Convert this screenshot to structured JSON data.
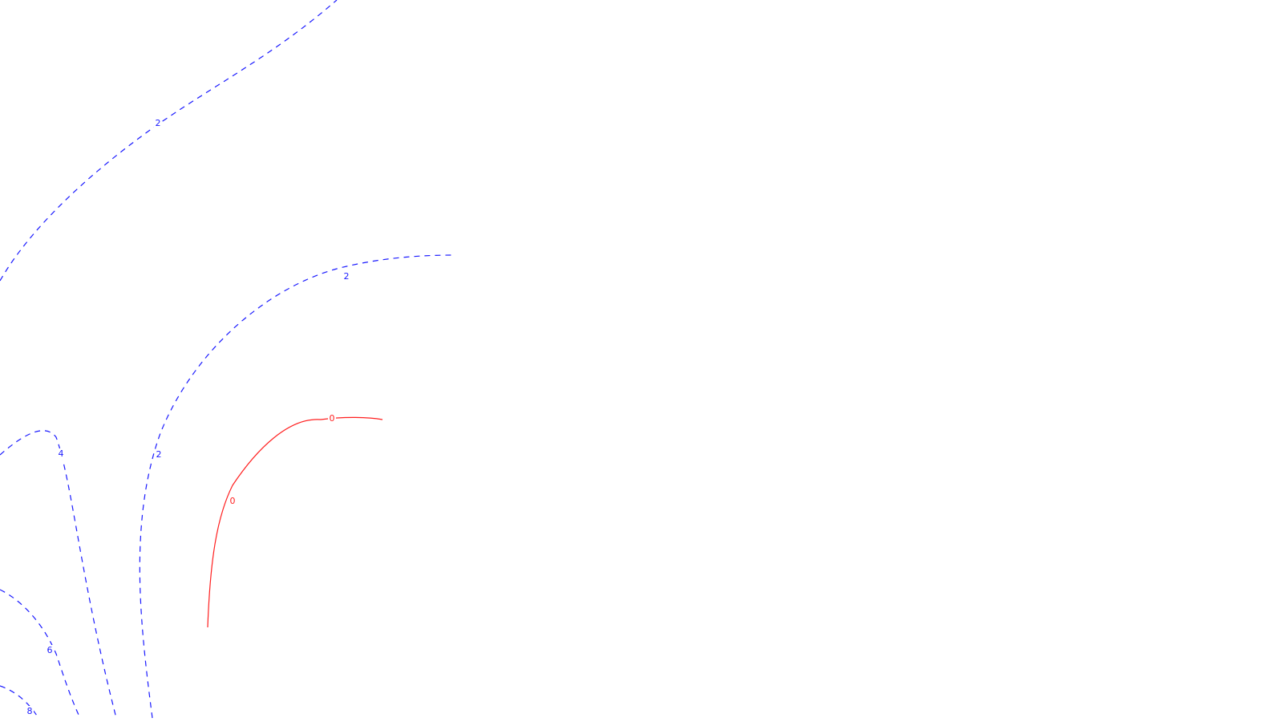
{
  "chart_data": {
    "type": "contour",
    "title": "",
    "xlabel": "",
    "ylabel": "",
    "colors": {
      "negative": "#1a1aff",
      "zero": "#ff2020"
    },
    "contours": [
      {
        "level": "2",
        "style": "dashed",
        "color": "#1a1aff",
        "labels": [
          "2"
        ]
      },
      {
        "level": "2",
        "style": "dashed",
        "color": "#1a1aff",
        "labels": [
          "2",
          "2"
        ]
      },
      {
        "level": "0",
        "style": "solid",
        "color": "#ff2020",
        "labels": [
          "0",
          "0"
        ]
      },
      {
        "level": "4",
        "style": "dashed",
        "color": "#1a1aff",
        "labels": [
          "4"
        ]
      },
      {
        "level": "6",
        "style": "dashed",
        "color": "#1a1aff",
        "labels": [
          "6"
        ]
      },
      {
        "level": "8",
        "style": "dashed",
        "color": "#1a1aff",
        "labels": [
          "8"
        ]
      }
    ]
  }
}
